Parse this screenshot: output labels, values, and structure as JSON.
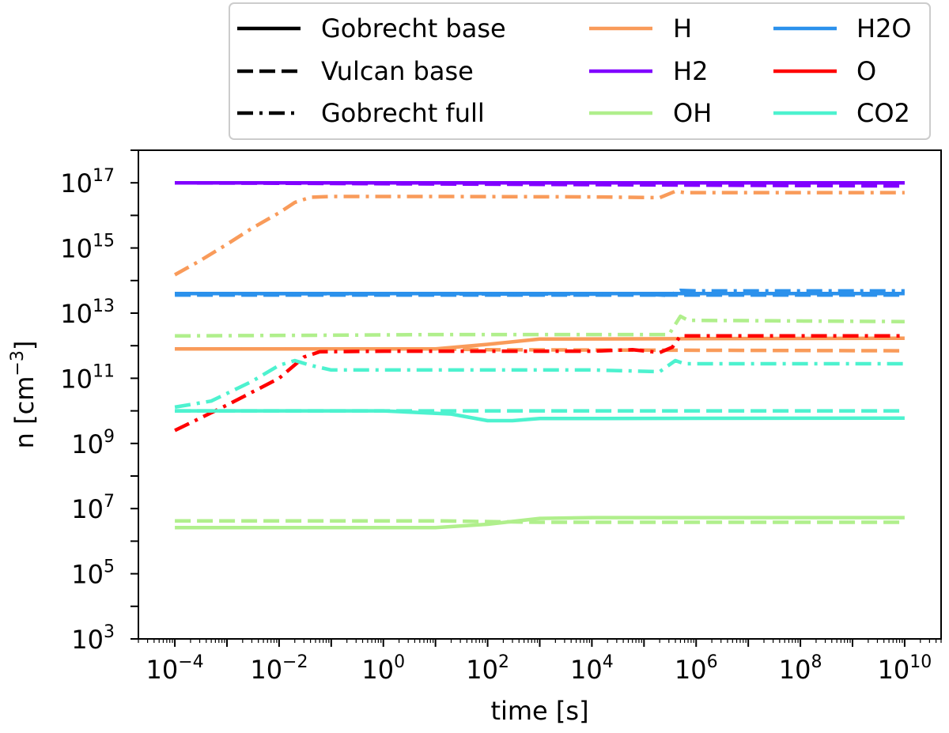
{
  "chart_data": {
    "type": "line",
    "xlabel": "time [s]",
    "ylabel": "n [cm",
    "ylabel_unit_exponent": "−3",
    "ylabel_close": "]",
    "x_scale": "log",
    "y_scale": "log",
    "xlim": [
      2e-05,
      50000000000
    ],
    "ylim": [
      1000,
      1e+18
    ],
    "grid": false,
    "legend_position": "top-right",
    "x_tick_labels": [
      {
        "base": "10",
        "exp": "−4",
        "value": 0.0001
      },
      {
        "base": "10",
        "exp": "−2",
        "value": 0.01
      },
      {
        "base": "10",
        "exp": "0",
        "value": 1
      },
      {
        "base": "10",
        "exp": "2",
        "value": 100
      },
      {
        "base": "10",
        "exp": "4",
        "value": 10000
      },
      {
        "base": "10",
        "exp": "6",
        "value": 1000000
      },
      {
        "base": "10",
        "exp": "8",
        "value": 100000000
      },
      {
        "base": "10",
        "exp": "10",
        "value": 10000000000
      }
    ],
    "y_tick_labels": [
      {
        "base": "10",
        "exp": "3",
        "value": 1000
      },
      {
        "base": "10",
        "exp": "5",
        "value": 100000
      },
      {
        "base": "10",
        "exp": "7",
        "value": 10000000
      },
      {
        "base": "10",
        "exp": "9",
        "value": 1000000000
      },
      {
        "base": "10",
        "exp": "11",
        "value": 100000000000
      },
      {
        "base": "10",
        "exp": "13",
        "value": 10000000000000
      },
      {
        "base": "10",
        "exp": "15",
        "value": 1000000000000000
      },
      {
        "base": "10",
        "exp": "17",
        "value": 100000000000000000
      }
    ],
    "legend_styles": [
      {
        "name": "Gobrecht base",
        "style": "solid"
      },
      {
        "name": "Vulcan base",
        "style": "dashed"
      },
      {
        "name": "Gobrecht full",
        "style": "dashdot"
      }
    ],
    "legend_species": [
      {
        "name": "H",
        "color": "#f99b5a"
      },
      {
        "name": "H2O",
        "color": "#2b91ec"
      },
      {
        "name": "H2",
        "color": "#8000ff"
      },
      {
        "name": "O",
        "color": "#ff0000"
      },
      {
        "name": "OH",
        "color": "#b0ef8c"
      },
      {
        "name": "CO2",
        "color": "#4df2cf"
      }
    ],
    "series": [
      {
        "species": "H2",
        "model": "Gobrecht base",
        "style": "solid",
        "color": "#8000ff",
        "points": [
          [
            0.0001,
            1e+17
          ],
          [
            10000000000,
            1e+17
          ]
        ]
      },
      {
        "species": "H2",
        "model": "Vulcan base",
        "style": "dashed",
        "color": "#8000ff",
        "points": [
          [
            0.0001,
            1e+17
          ],
          [
            10000000000,
            8e+16
          ]
        ]
      },
      {
        "species": "H2",
        "model": "Gobrecht full",
        "style": "dashdot",
        "color": "#8000ff",
        "points": [
          [
            0.0001,
            1e+17
          ],
          [
            10000000000,
            1e+17
          ]
        ]
      },
      {
        "species": "H",
        "model": "Gobrecht full",
        "style": "dashdot",
        "color": "#f99b5a",
        "points": [
          [
            0.0001,
            150000000000000.0
          ],
          [
            0.0003,
            400000000000000.0
          ],
          [
            0.001,
            1300000000000000.0
          ],
          [
            0.003,
            4000000000000000.0
          ],
          [
            0.01,
            1.2e+16
          ],
          [
            0.02,
            2.5e+16
          ],
          [
            0.04,
            3.6e+16
          ],
          [
            0.1,
            3.8e+16
          ],
          [
            10,
            3.8e+16
          ],
          [
            10000,
            3.7e+16
          ],
          [
            200000,
            3.5e+16
          ],
          [
            400000,
            5.5e+16
          ],
          [
            600000,
            5e+16
          ],
          [
            10000000000,
            5e+16
          ]
        ]
      },
      {
        "species": "H",
        "model": "Gobrecht base",
        "style": "solid",
        "color": "#f99b5a",
        "points": [
          [
            0.0001,
            800000000000.0
          ],
          [
            10,
            800000000000.0
          ],
          [
            100,
            1100000000000.0
          ],
          [
            1000,
            1600000000000.0
          ],
          [
            10000000000,
            1700000000000.0
          ]
        ]
      },
      {
        "species": "H",
        "model": "Vulcan base",
        "style": "dashed",
        "color": "#f99b5a",
        "points": [
          [
            0.0001,
            800000000000.0
          ],
          [
            10,
            800000000000.0
          ],
          [
            100,
            750000000000.0
          ],
          [
            10000000000,
            700000000000.0
          ]
        ]
      },
      {
        "species": "H2O",
        "model": "Gobrecht base",
        "style": "solid",
        "color": "#2b91ec",
        "points": [
          [
            0.0001,
            40000000000000.0
          ],
          [
            10000000000,
            40000000000000.0
          ]
        ]
      },
      {
        "species": "H2O",
        "model": "Vulcan base",
        "style": "dashed",
        "color": "#2b91ec",
        "points": [
          [
            0.0001,
            36000000000000.0
          ],
          [
            10000000000,
            36000000000000.0
          ]
        ]
      },
      {
        "species": "H2O",
        "model": "Gobrecht full",
        "style": "dashdot",
        "color": "#2b91ec",
        "points": [
          [
            0.0001,
            40000000000000.0
          ],
          [
            100000,
            38000000000000.0
          ],
          [
            300000,
            35000000000000.0
          ],
          [
            500000,
            50000000000000.0
          ],
          [
            1000000,
            48000000000000.0
          ],
          [
            10000000000,
            48000000000000.0
          ]
        ]
      },
      {
        "species": "OH",
        "model": "Gobrecht full",
        "style": "dashdot",
        "color": "#b0ef8c",
        "points": [
          [
            0.0001,
            2000000000000.0
          ],
          [
            0.1,
            2100000000000.0
          ],
          [
            10,
            2200000000000.0
          ],
          [
            100000,
            2200000000000.0
          ],
          [
            300000,
            2200000000000.0
          ],
          [
            500000,
            8000000000000.0
          ],
          [
            700000,
            6000000000000.0
          ],
          [
            10000000000,
            5500000000000.0
          ]
        ]
      },
      {
        "species": "OH",
        "model": "Gobrecht base",
        "style": "solid",
        "color": "#b0ef8c",
        "points": [
          [
            0.0001,
            2600000.0
          ],
          [
            10,
            2600000.0
          ],
          [
            100,
            3300000.0
          ],
          [
            1000,
            5000000.0
          ],
          [
            10000,
            5300000.0
          ],
          [
            10000000000,
            5300000.0
          ]
        ]
      },
      {
        "species": "OH",
        "model": "Vulcan base",
        "style": "dashed",
        "color": "#b0ef8c",
        "points": [
          [
            0.0001,
            4200000.0
          ],
          [
            10,
            4200000.0
          ],
          [
            100,
            4000000.0
          ],
          [
            1000,
            3800000.0
          ],
          [
            10000000000,
            3800000.0
          ]
        ]
      },
      {
        "species": "O",
        "model": "Gobrecht full",
        "style": "dashdot",
        "color": "#ff0000",
        "points": [
          [
            0.0001,
            2500000000.0
          ],
          [
            0.001,
            15000000000.0
          ],
          [
            0.01,
            100000000000.0
          ],
          [
            0.03,
            450000000000.0
          ],
          [
            0.06,
            650000000000.0
          ],
          [
            1,
            680000000000.0
          ],
          [
            10000,
            680000000000.0
          ],
          [
            60000,
            750000000000.0
          ],
          [
            200000,
            620000000000.0
          ],
          [
            350000,
            900000000000.0
          ],
          [
            500000,
            2000000000000.0
          ],
          [
            10000000000,
            2000000000000.0
          ]
        ]
      },
      {
        "species": "CO2",
        "model": "Gobrecht full",
        "style": "dashdot",
        "color": "#4df2cf",
        "points": [
          [
            0.0001,
            13000000000.0
          ],
          [
            0.0005,
            20000000000.0
          ],
          [
            0.003,
            80000000000.0
          ],
          [
            0.01,
            250000000000.0
          ],
          [
            0.02,
            350000000000.0
          ],
          [
            0.04,
            250000000000.0
          ],
          [
            0.1,
            180000000000.0
          ],
          [
            10,
            180000000000.0
          ],
          [
            10000,
            180000000000.0
          ],
          [
            200000,
            160000000000.0
          ],
          [
            400000,
            350000000000.0
          ],
          [
            600000,
            280000000000.0
          ],
          [
            10000000000,
            280000000000.0
          ]
        ]
      },
      {
        "species": "CO2",
        "model": "Gobrecht base",
        "style": "solid",
        "color": "#4df2cf",
        "points": [
          [
            0.0001,
            10000000000.0
          ],
          [
            1,
            10000000000.0
          ],
          [
            20,
            8000000000.0
          ],
          [
            100,
            5000000000.0
          ],
          [
            300,
            5000000000.0
          ],
          [
            1000,
            5800000000.0
          ],
          [
            10000000000,
            6000000000.0
          ]
        ]
      },
      {
        "species": "CO2",
        "model": "Vulcan base",
        "style": "dashed",
        "color": "#4df2cf",
        "points": [
          [
            0.0001,
            10000000000.0
          ],
          [
            10000000000,
            10000000000.0
          ]
        ]
      }
    ]
  }
}
